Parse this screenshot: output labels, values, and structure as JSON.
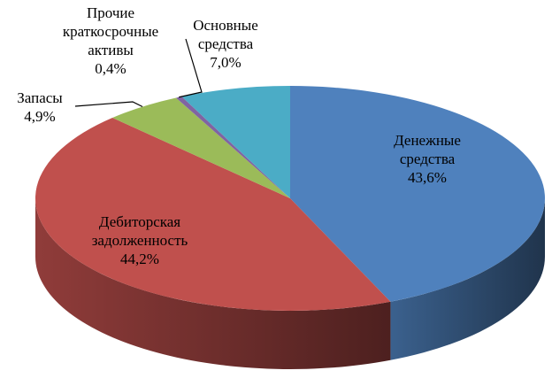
{
  "chart_data": {
    "type": "pie3d",
    "categories": [
      "Денежные средства",
      "Дебиторская задолженность",
      "Запасы",
      "Прочие краткосрочные активы",
      "Основные средства"
    ],
    "values": [
      43.6,
      44.2,
      4.9,
      0.4,
      7.0
    ],
    "value_labels": [
      "43,6%",
      "44,2%",
      "4,9%",
      "0,4%",
      "7,0%"
    ],
    "colors": [
      "#4f81bd",
      "#c0504d",
      "#9bbb59",
      "#8064a2",
      "#4bacc6"
    ]
  }
}
